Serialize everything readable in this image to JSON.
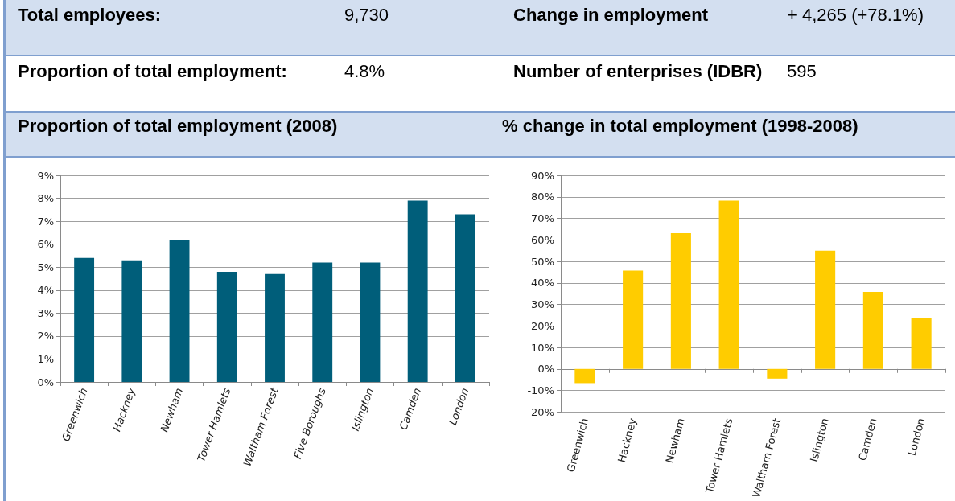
{
  "chart_data": [
    {
      "type": "other",
      "annotations": [
        "Total employees:",
        "9,730",
        "Change in employment",
        "+ 4,265 (+78.1%)",
        "Proportion of total employment:",
        "4.8%",
        "Number of enterprises (IDBR)",
        "595"
      ]
    },
    {
      "type": "bar",
      "title": "Proportion of total employment (2008)",
      "categories": [
        "Greenwich",
        "Hackney",
        "Newham",
        "Tower Hamlets",
        "Waltham Forest",
        "Five Boroughs",
        "Islington",
        "Camden",
        "London"
      ],
      "values": [
        5.4,
        5.3,
        6.2,
        4.8,
        4.7,
        5.2,
        5.2,
        7.9,
        7.3
      ],
      "color": "#005e7a",
      "ylim": [
        0,
        9
      ],
      "yticks": [
        {
          "value": 0,
          "label": "0%"
        },
        {
          "value": 1,
          "label": "1%"
        },
        {
          "value": 2,
          "label": "2%"
        },
        {
          "value": 3,
          "label": "3%"
        },
        {
          "value": 4,
          "label": "4%"
        },
        {
          "value": 5,
          "label": "5%"
        },
        {
          "value": 6,
          "label": "6%"
        },
        {
          "value": 7,
          "label": "7%"
        },
        {
          "value": 8,
          "label": "8%"
        },
        {
          "value": 9,
          "label": "9%"
        }
      ],
      "grid": "y"
    },
    {
      "type": "bar",
      "title": "%  change in total employment (1998-2008)",
      "categories": [
        "Greenwich",
        "Hackney",
        "Newham",
        "Tower Hamlets",
        "Waltham Forest",
        "Islington",
        "Camden",
        "London"
      ],
      "values": [
        -6.6,
        45.7,
        63.1,
        78.2,
        -4.5,
        55.0,
        35.8,
        23.7
      ],
      "color": "#ffcc00",
      "ylim": [
        -20,
        90
      ],
      "yticks": [
        {
          "value": -20,
          "label": "-20%"
        },
        {
          "value": -10,
          "label": "-10%"
        },
        {
          "value": 0,
          "label": "0%"
        },
        {
          "value": 10,
          "label": "10%"
        },
        {
          "value": 20,
          "label": "20%"
        },
        {
          "value": 30,
          "label": "30%"
        },
        {
          "value": 40,
          "label": "40%"
        },
        {
          "value": 50,
          "label": "50%"
        },
        {
          "value": 60,
          "label": "60%"
        },
        {
          "value": 70,
          "label": "70%"
        },
        {
          "value": 80,
          "label": "80%"
        },
        {
          "value": 90,
          "label": "90%"
        }
      ],
      "grid": "y"
    }
  ]
}
